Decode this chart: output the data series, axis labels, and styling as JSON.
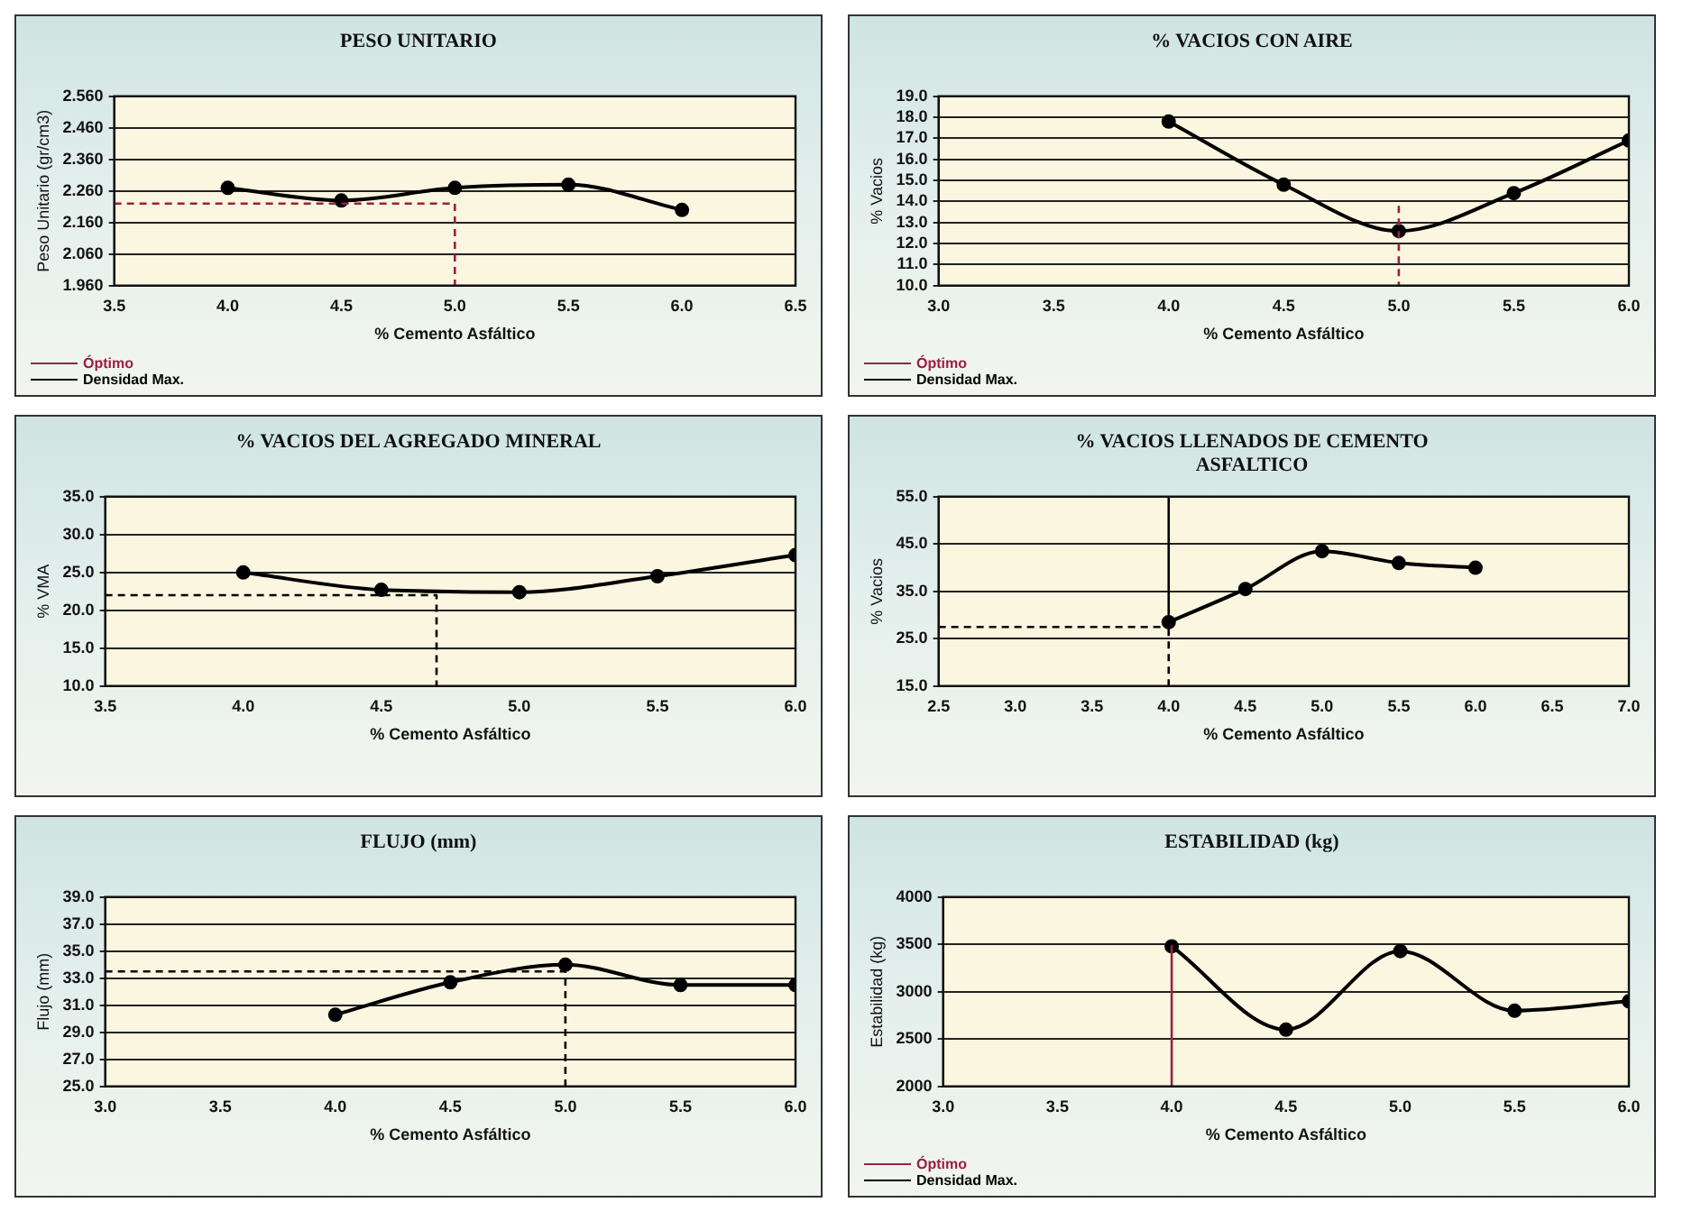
{
  "chart_data": [
    {
      "type": "line",
      "title": "PESO UNITARIO",
      "xlabel": "% Cemento Asfáltico",
      "ylabel": "Peso Unitario (gr/cm3)",
      "x": [
        4.0,
        4.5,
        5.0,
        5.5,
        6.0
      ],
      "series": [
        {
          "name": "Óptimo",
          "color": "#9b2040",
          "marker": "none",
          "line_style": "dashed",
          "x": [
            3.5,
            5.0,
            5.0
          ],
          "values": [
            2.22,
            2.22,
            1.96
          ]
        },
        {
          "name": "Densidad Max.",
          "color": "#000000",
          "marker": "circle",
          "line_style": "solid",
          "values": [
            2.27,
            2.23,
            2.27,
            2.28,
            2.2
          ]
        }
      ],
      "xlim": [
        3.5,
        6.5
      ],
      "xticks": [
        {
          "value": 3.5,
          "label": "3.5"
        },
        {
          "value": 4,
          "label": "4.0"
        },
        {
          "value": 4.5,
          "label": "4.5"
        },
        {
          "value": 5,
          "label": "5.0"
        },
        {
          "value": 5.5,
          "label": "5.5"
        },
        {
          "value": 6,
          "label": "6.0"
        },
        {
          "value": 6.5,
          "label": "6.5"
        }
      ],
      "ylim": [
        1.96,
        2.56
      ],
      "yticks": [
        {
          "value": 1.96,
          "label": "1.960"
        },
        {
          "value": 2.06,
          "label": "2.060"
        },
        {
          "value": 2.16,
          "label": "2.160"
        },
        {
          "value": 2.26,
          "label": "2.260"
        },
        {
          "value": 2.36,
          "label": "2.360"
        },
        {
          "value": 2.46,
          "label": "2.460"
        },
        {
          "value": 2.56,
          "label": "2.560"
        }
      ],
      "grid": "y",
      "legend": "bottom left"
    },
    {
      "type": "line",
      "title": "% VACIOS CON AIRE",
      "xlabel": "% Cemento Asfáltico",
      "ylabel": "% Vacios",
      "x": [
        4.0,
        4.5,
        5.0,
        5.5,
        6.0
      ],
      "series": [
        {
          "name": "Óptimo",
          "color": "#9b2040",
          "marker": "none",
          "line_style": "dashed",
          "x": [
            5.0,
            5.0
          ],
          "values": [
            13.8,
            10.0
          ]
        },
        {
          "name": "Densidad Max.",
          "color": "#000000",
          "marker": "circle",
          "line_style": "solid",
          "values": [
            17.8,
            14.8,
            12.6,
            14.4,
            16.9
          ]
        }
      ],
      "xlim": [
        3.0,
        6.0
      ],
      "xticks": [
        {
          "value": 3,
          "label": "3.0"
        },
        {
          "value": 3.5,
          "label": "3.5"
        },
        {
          "value": 4,
          "label": "4.0"
        },
        {
          "value": 4.5,
          "label": "4.5"
        },
        {
          "value": 5,
          "label": "5.0"
        },
        {
          "value": 5.5,
          "label": "5.5"
        },
        {
          "value": 6,
          "label": "6.0"
        }
      ],
      "ylim": [
        10,
        19
      ],
      "yticks": [
        {
          "value": 10,
          "label": "10.0"
        },
        {
          "value": 11,
          "label": "11.0"
        },
        {
          "value": 12,
          "label": "12.0"
        },
        {
          "value": 13,
          "label": "13.0"
        },
        {
          "value": 14,
          "label": "14.0"
        },
        {
          "value": 15,
          "label": "15.0"
        },
        {
          "value": 16,
          "label": "16.0"
        },
        {
          "value": 17,
          "label": "17.0"
        },
        {
          "value": 18,
          "label": "18.0"
        },
        {
          "value": 19,
          "label": "19.0"
        }
      ],
      "grid": "y",
      "legend": "bottom left"
    },
    {
      "type": "line",
      "title": "% VACIOS DEL AGREGADO MINERAL",
      "xlabel": "% Cemento Asfáltico",
      "ylabel": "% VMA",
      "x": [
        4.0,
        4.5,
        5.0,
        5.5,
        6.0
      ],
      "series": [
        {
          "color": "#000000",
          "marker": "circle",
          "line_style": "solid",
          "values": [
            25.0,
            22.7,
            22.4,
            24.5,
            27.3
          ]
        },
        {
          "color": "#000000",
          "marker": "none",
          "line_style": "dashed",
          "x": [
            3.5,
            4.7,
            4.7
          ],
          "values": [
            22.0,
            22.0,
            10.0
          ]
        }
      ],
      "xlim": [
        3.5,
        6.0
      ],
      "xticks": [
        {
          "value": 3.5,
          "label": "3.5"
        },
        {
          "value": 4,
          "label": "4.0"
        },
        {
          "value": 4.5,
          "label": "4.5"
        },
        {
          "value": 5,
          "label": "5.0"
        },
        {
          "value": 5.5,
          "label": "5.5"
        },
        {
          "value": 6,
          "label": "6.0"
        }
      ],
      "ylim": [
        10,
        35
      ],
      "yticks": [
        {
          "value": 10,
          "label": "10.0"
        },
        {
          "value": 15,
          "label": "15.0"
        },
        {
          "value": 20,
          "label": "20.0"
        },
        {
          "value": 25,
          "label": "25.0"
        },
        {
          "value": 30,
          "label": "30.0"
        },
        {
          "value": 35,
          "label": "35.0"
        }
      ],
      "grid": "y"
    },
    {
      "type": "line",
      "title": "% VACIOS LLENADOS DE CEMENTO ASFALTICO",
      "xlabel": "% Cemento Asfáltico",
      "ylabel": "% Vacios",
      "x": [
        4.0,
        4.5,
        5.0,
        5.5,
        6.0
      ],
      "series": [
        {
          "color": "#000000",
          "marker": "circle",
          "line_style": "solid",
          "values": [
            28.5,
            35.5,
            43.5,
            41.0,
            40.0
          ]
        },
        {
          "color": "#000000",
          "marker": "none",
          "line_style": "dashed",
          "x": [
            2.5,
            4.0,
            4.0,
            4.0
          ],
          "values": [
            27.5,
            27.5,
            55.0,
            15.0
          ]
        }
      ],
      "xlim": [
        2.5,
        7.0
      ],
      "xticks": [
        {
          "value": 2.5,
          "label": "2.5"
        },
        {
          "value": 3,
          "label": "3.0"
        },
        {
          "value": 3.5,
          "label": "3.5"
        },
        {
          "value": 4,
          "label": "4.0"
        },
        {
          "value": 4.5,
          "label": "4.5"
        },
        {
          "value": 5,
          "label": "5.0"
        },
        {
          "value": 5.5,
          "label": "5.5"
        },
        {
          "value": 6,
          "label": "6.0"
        },
        {
          "value": 6.5,
          "label": "6.5"
        },
        {
          "value": 7,
          "label": "7.0"
        }
      ],
      "ylim": [
        15,
        55
      ],
      "yticks": [
        {
          "value": 15,
          "label": "15.0"
        },
        {
          "value": 25,
          "label": "25.0"
        },
        {
          "value": 35,
          "label": "35.0"
        },
        {
          "value": 45,
          "label": "45.0"
        },
        {
          "value": 55,
          "label": "55.0"
        }
      ],
      "grid": "y"
    },
    {
      "type": "line",
      "title": "FLUJO (mm)",
      "xlabel": "% Cemento Asfáltico",
      "ylabel": "Flujo (mm)",
      "x": [
        4.0,
        4.5,
        5.0,
        5.5,
        6.0
      ],
      "series": [
        {
          "color": "#000000",
          "marker": "circle",
          "line_style": "solid",
          "values": [
            30.3,
            32.7,
            34.0,
            32.5,
            32.5
          ]
        },
        {
          "color": "#000000",
          "marker": "none",
          "line_style": "dashed",
          "x": [
            3.0,
            5.0,
            5.0
          ],
          "values": [
            33.5,
            33.5,
            25.0
          ]
        }
      ],
      "xlim": [
        3.0,
        6.0
      ],
      "xticks": [
        {
          "value": 3,
          "label": "3.0"
        },
        {
          "value": 3.5,
          "label": "3.5"
        },
        {
          "value": 4,
          "label": "4.0"
        },
        {
          "value": 4.5,
          "label": "4.5"
        },
        {
          "value": 5,
          "label": "5.0"
        },
        {
          "value": 5.5,
          "label": "5.5"
        },
        {
          "value": 6,
          "label": "6.0"
        }
      ],
      "ylim": [
        25,
        39
      ],
      "yticks": [
        {
          "value": 25,
          "label": "25.0"
        },
        {
          "value": 27,
          "label": "27.0"
        },
        {
          "value": 29,
          "label": "29.0"
        },
        {
          "value": 31,
          "label": "31.0"
        },
        {
          "value": 33,
          "label": "33.0"
        },
        {
          "value": 35,
          "label": "35.0"
        },
        {
          "value": 37,
          "label": "37.0"
        },
        {
          "value": 39,
          "label": "39.0"
        }
      ],
      "grid": "y"
    },
    {
      "type": "line",
      "title": "ESTABILIDAD (kg)",
      "xlabel": "% Cemento Asfáltico",
      "ylabel": "Estabilidad (kg)",
      "x": [
        4.0,
        4.5,
        5.0,
        5.5,
        6.0
      ],
      "series": [
        {
          "name": "Óptimo",
          "color": "#9b2040",
          "marker": "none",
          "line_style": "solid",
          "x": [
            4.0,
            4.0
          ],
          "values": [
            3480,
            2000
          ]
        },
        {
          "name": "Densidad Max.",
          "color": "#000000",
          "marker": "circle",
          "line_style": "solid",
          "values": [
            3480,
            2600,
            3430,
            2800,
            2900
          ]
        }
      ],
      "xlim": [
        3.0,
        6.0
      ],
      "xticks": [
        {
          "value": 3,
          "label": "3.0"
        },
        {
          "value": 3.5,
          "label": "3.5"
        },
        {
          "value": 4,
          "label": "4.0"
        },
        {
          "value": 4.5,
          "label": "4.5"
        },
        {
          "value": 5,
          "label": "5.0"
        },
        {
          "value": 5.5,
          "label": "5.5"
        },
        {
          "value": 6,
          "label": "6.0"
        }
      ],
      "ylim": [
        2000,
        4000
      ],
      "yticks": [
        2000,
        2500,
        3000,
        3500,
        4000
      ],
      "grid": "y",
      "legend": "bottom left"
    }
  ]
}
